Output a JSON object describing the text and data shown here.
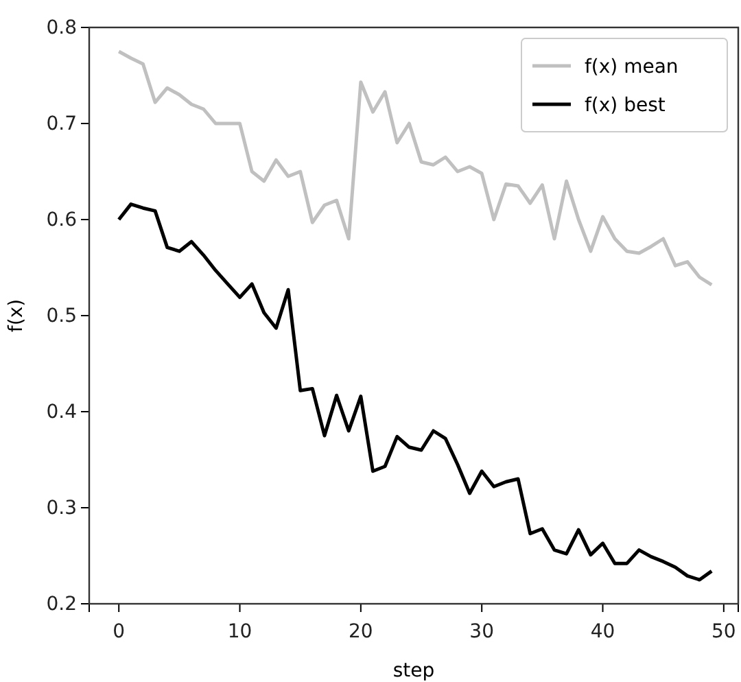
{
  "chart_data": {
    "type": "line",
    "xlabel": "step",
    "ylabel": "f(x)",
    "x": [
      0,
      1,
      2,
      3,
      4,
      5,
      6,
      7,
      8,
      9,
      10,
      11,
      12,
      13,
      14,
      15,
      16,
      17,
      18,
      19,
      20,
      21,
      22,
      23,
      24,
      25,
      26,
      27,
      28,
      29,
      30,
      31,
      32,
      33,
      34,
      35,
      36,
      37,
      38,
      39,
      40,
      41,
      42,
      43,
      44,
      45,
      46,
      47,
      48,
      49
    ],
    "series": [
      {
        "name": "f(x) mean",
        "color": "#c0c0c0",
        "values": [
          0.775,
          0.768,
          0.762,
          0.722,
          0.737,
          0.73,
          0.72,
          0.715,
          0.7,
          0.7,
          0.7,
          0.65,
          0.64,
          0.662,
          0.645,
          0.65,
          0.597,
          0.615,
          0.62,
          0.58,
          0.743,
          0.712,
          0.733,
          0.68,
          0.7,
          0.66,
          0.657,
          0.665,
          0.65,
          0.655,
          0.648,
          0.6,
          0.637,
          0.635,
          0.617,
          0.636,
          0.58,
          0.64,
          0.6,
          0.567,
          0.603,
          0.58,
          0.567,
          0.565,
          0.572,
          0.58,
          0.552,
          0.556,
          0.54,
          0.532
        ]
      },
      {
        "name": "f(x) best",
        "color": "#000000",
        "values": [
          0.6,
          0.616,
          0.612,
          0.609,
          0.571,
          0.567,
          0.577,
          0.563,
          0.547,
          0.533,
          0.519,
          0.533,
          0.503,
          0.487,
          0.527,
          0.422,
          0.424,
          0.375,
          0.417,
          0.38,
          0.416,
          0.338,
          0.343,
          0.374,
          0.363,
          0.36,
          0.38,
          0.372,
          0.345,
          0.315,
          0.338,
          0.322,
          0.327,
          0.33,
          0.273,
          0.278,
          0.256,
          0.252,
          0.277,
          0.251,
          0.263,
          0.242,
          0.242,
          0.256,
          0.249,
          0.244,
          0.238,
          0.229,
          0.225,
          0.234
        ]
      }
    ],
    "xlim": [
      -2.45,
      51.2
    ],
    "ylim": [
      0.2,
      0.8
    ],
    "xticks": [
      0,
      10,
      20,
      30,
      40,
      50
    ],
    "yticks": [
      0.2,
      0.3,
      0.4,
      0.5,
      0.6,
      0.7,
      0.8
    ],
    "legend": "top right",
    "grid": false,
    "marker": "none",
    "line_style": "solid"
  }
}
